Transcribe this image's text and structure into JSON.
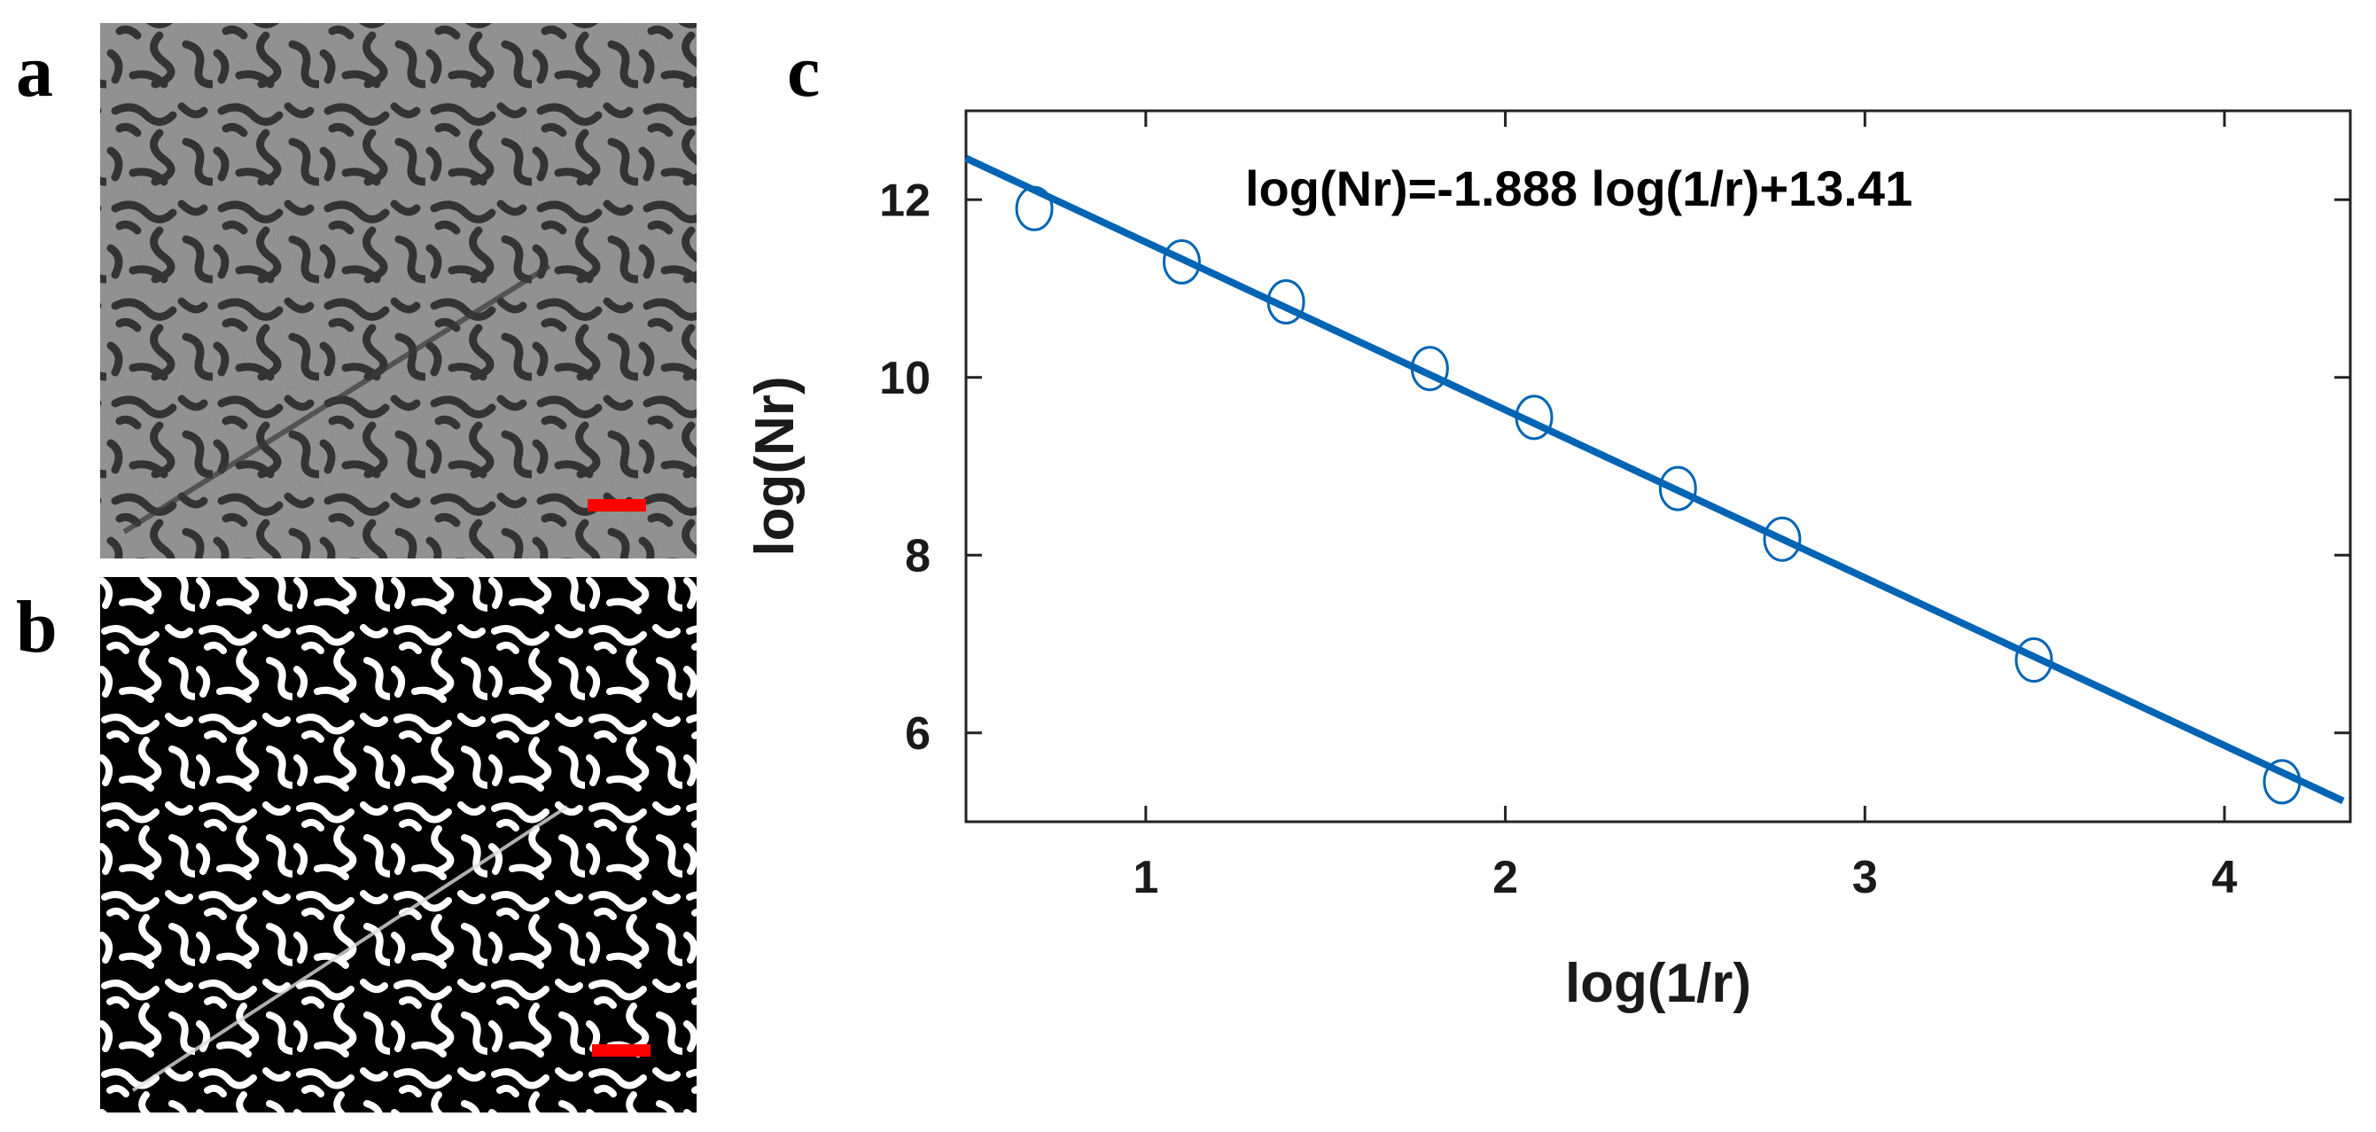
{
  "figure": {
    "panel_labels": [
      "a",
      "b",
      "c"
    ],
    "image_a": {
      "name": "micrograph-grayscale",
      "scale_bar_color": "#ff0000"
    },
    "image_b": {
      "name": "micrograph-binarized",
      "scale_bar_color": "#ff0000"
    }
  },
  "chart_data": {
    "type": "scatter",
    "title": "",
    "xlabel": "log(1/r)",
    "ylabel": "log(Nr)",
    "xlim": [
      0.5,
      4.35
    ],
    "ylim": [
      5,
      13
    ],
    "xticks": [
      1,
      2,
      3,
      4
    ],
    "yticks": [
      6,
      8,
      10,
      12
    ],
    "grid": false,
    "annotation": "log(Nr)=-1.888 log(1/r)+13.41",
    "series": [
      {
        "marker": "circle-open",
        "color": "#0064b4",
        "x": [
          0.69,
          1.1,
          1.39,
          1.79,
          2.08,
          2.48,
          2.77,
          3.47,
          4.16
        ],
        "y": [
          11.9,
          11.3,
          10.85,
          10.1,
          9.55,
          8.75,
          8.18,
          6.82,
          5.45
        ]
      }
    ],
    "fit_line": {
      "color": "#0064b4",
      "slope": -1.888,
      "intercept": 13.41,
      "x_range": [
        0.5,
        4.33
      ]
    }
  }
}
